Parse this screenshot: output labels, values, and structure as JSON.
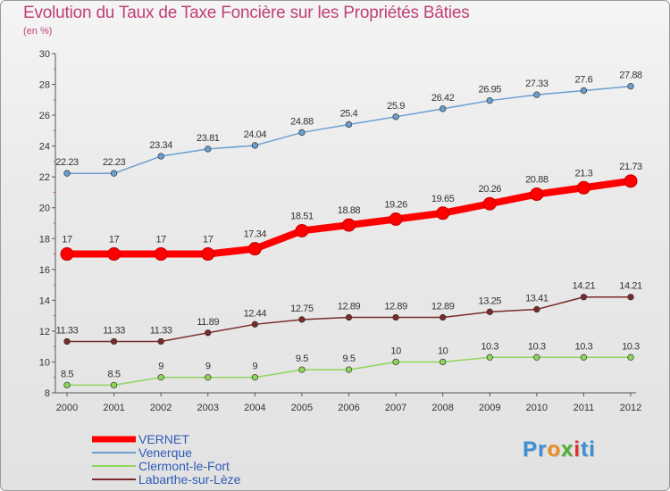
{
  "title": "Evolution du Taux de Taxe Foncière sur les Propriétés Bâties",
  "unit_label": "(en %)",
  "logo": {
    "letters": [
      "P",
      "r",
      "o",
      "x",
      "i",
      "t",
      "i"
    ],
    "colors": [
      "#3a8fd8",
      "#3a8fd8",
      "#f08a1c",
      "#4fb030",
      "#e03030",
      "#3a8fd8",
      "#3a8fd8"
    ]
  },
  "chart_data": {
    "type": "line",
    "x": [
      "2000",
      "2001",
      "2002",
      "2003",
      "2004",
      "2005",
      "2006",
      "2007",
      "2008",
      "2009",
      "2010",
      "2011",
      "2012"
    ],
    "ylim": [
      8,
      30
    ],
    "yticks": [
      "8",
      "10",
      "12",
      "14",
      "16",
      "18",
      "20",
      "22",
      "24",
      "26",
      "28",
      "30"
    ],
    "grid": false,
    "legend_position": "bottom-left",
    "series": [
      {
        "name": "VERNET",
        "color": "#ff0000",
        "labels": [
          "17",
          "17",
          "17",
          "17",
          "17.34",
          "18.51",
          "18.88",
          "19.26",
          "19.65",
          "20.26",
          "20.88",
          "21.3",
          "21.73"
        ],
        "values": [
          17,
          17,
          17,
          17,
          17.34,
          18.51,
          18.88,
          19.26,
          19.65,
          20.26,
          20.88,
          21.3,
          21.73
        ]
      },
      {
        "name": "Venerque",
        "color": "#6a9fd0",
        "labels": [
          "22.23",
          "22.23",
          "23.34",
          "23.81",
          "24.04",
          "24.88",
          "25.4",
          "25.9",
          "26.42",
          "26.95",
          "27.33",
          "27.6",
          "27.88"
        ],
        "values": [
          22.23,
          22.23,
          23.34,
          23.81,
          24.04,
          24.88,
          25.4,
          25.9,
          26.42,
          26.95,
          27.33,
          27.6,
          27.88
        ]
      },
      {
        "name": "Clermont-le-Fort",
        "color": "#8ed65a",
        "labels": [
          "8.5",
          "8.5",
          "9",
          "9",
          "9",
          "9.5",
          "9.5",
          "10",
          "10",
          "10.3",
          "10.3",
          "10.3",
          "10.3"
        ],
        "values": [
          8.5,
          8.5,
          9,
          9,
          9,
          9.5,
          9.5,
          10,
          10,
          10.3,
          10.3,
          10.3,
          10.3
        ]
      },
      {
        "name": "Labarthe-sur-Lèze",
        "color": "#7a2a2a",
        "labels": [
          "11.33",
          "11.33",
          "11.33",
          "11.89",
          "12.44",
          "12.75",
          "12.89",
          "12.89",
          "12.89",
          "13.25",
          "13.41",
          "14.21",
          "14.21"
        ],
        "values": [
          11.33,
          11.33,
          11.33,
          11.89,
          12.44,
          12.75,
          12.89,
          12.89,
          12.89,
          13.25,
          13.41,
          14.21,
          14.21
        ]
      }
    ]
  }
}
